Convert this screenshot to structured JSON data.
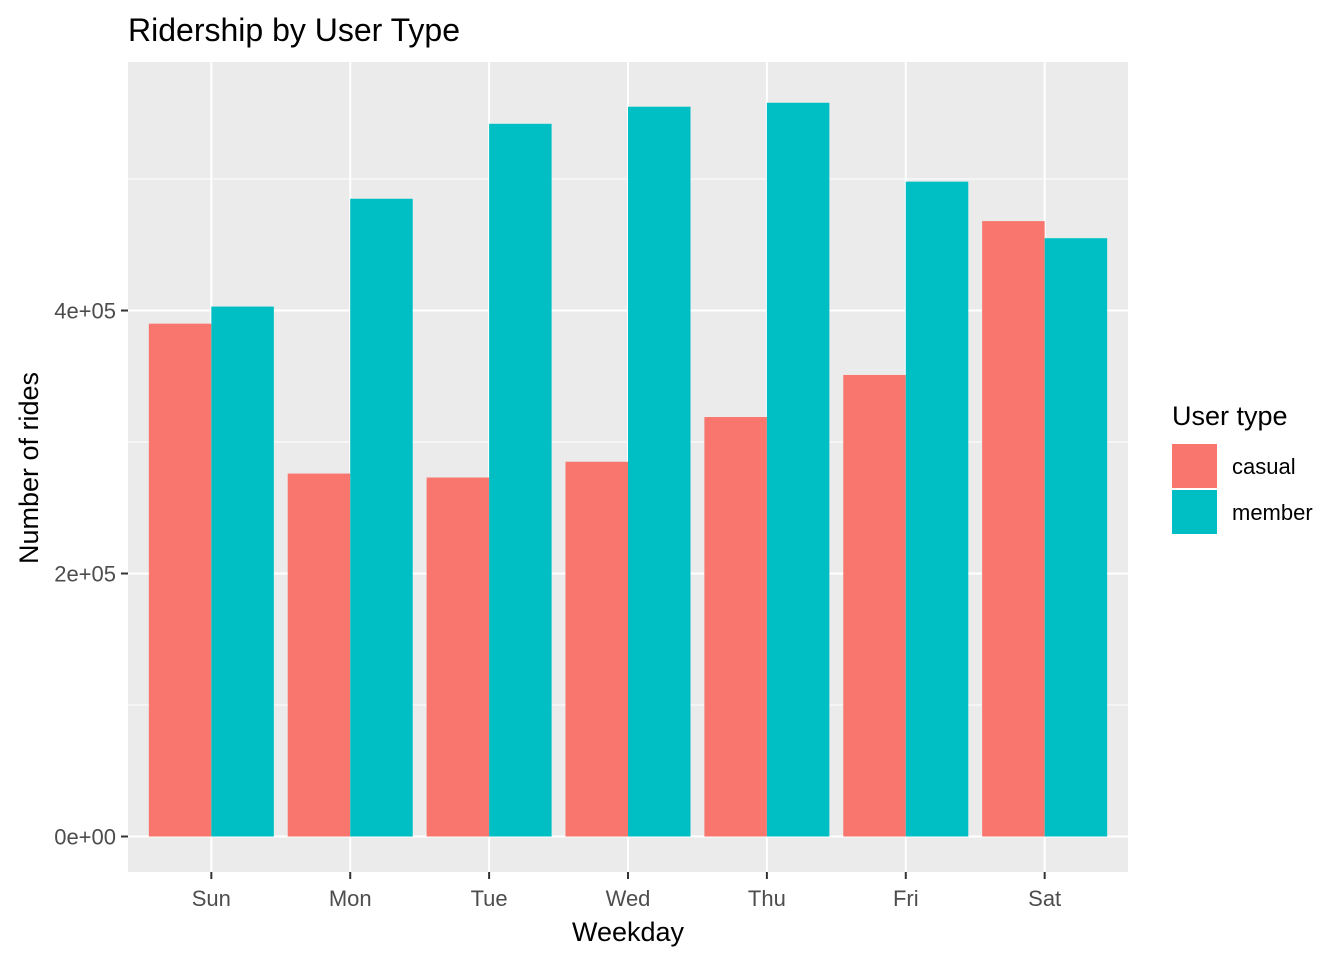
{
  "chart_data": {
    "type": "bar",
    "title": "Ridership by User Type",
    "xlabel": "Weekday",
    "ylabel": "Number of rides",
    "categories": [
      "Sun",
      "Mon",
      "Tue",
      "Wed",
      "Thu",
      "Fri",
      "Sat"
    ],
    "series": [
      {
        "name": "casual",
        "color": "#F8766D",
        "values": [
          390000,
          276000,
          273000,
          285000,
          319000,
          351000,
          468000
        ]
      },
      {
        "name": "member",
        "color": "#00BFC4",
        "values": [
          403000,
          485000,
          542000,
          555000,
          558000,
          498000,
          455000
        ]
      }
    ],
    "ylim": [
      -27000,
      589000
    ],
    "yticks": [
      0,
      200000,
      400000
    ],
    "ytick_labels": [
      "0e+00",
      "2e+05",
      "4e+05"
    ],
    "grid": true,
    "legend": {
      "title": "User type",
      "position": "right"
    },
    "panel_background": "#EBEBEB",
    "grid_color": "#FFFFFF"
  }
}
